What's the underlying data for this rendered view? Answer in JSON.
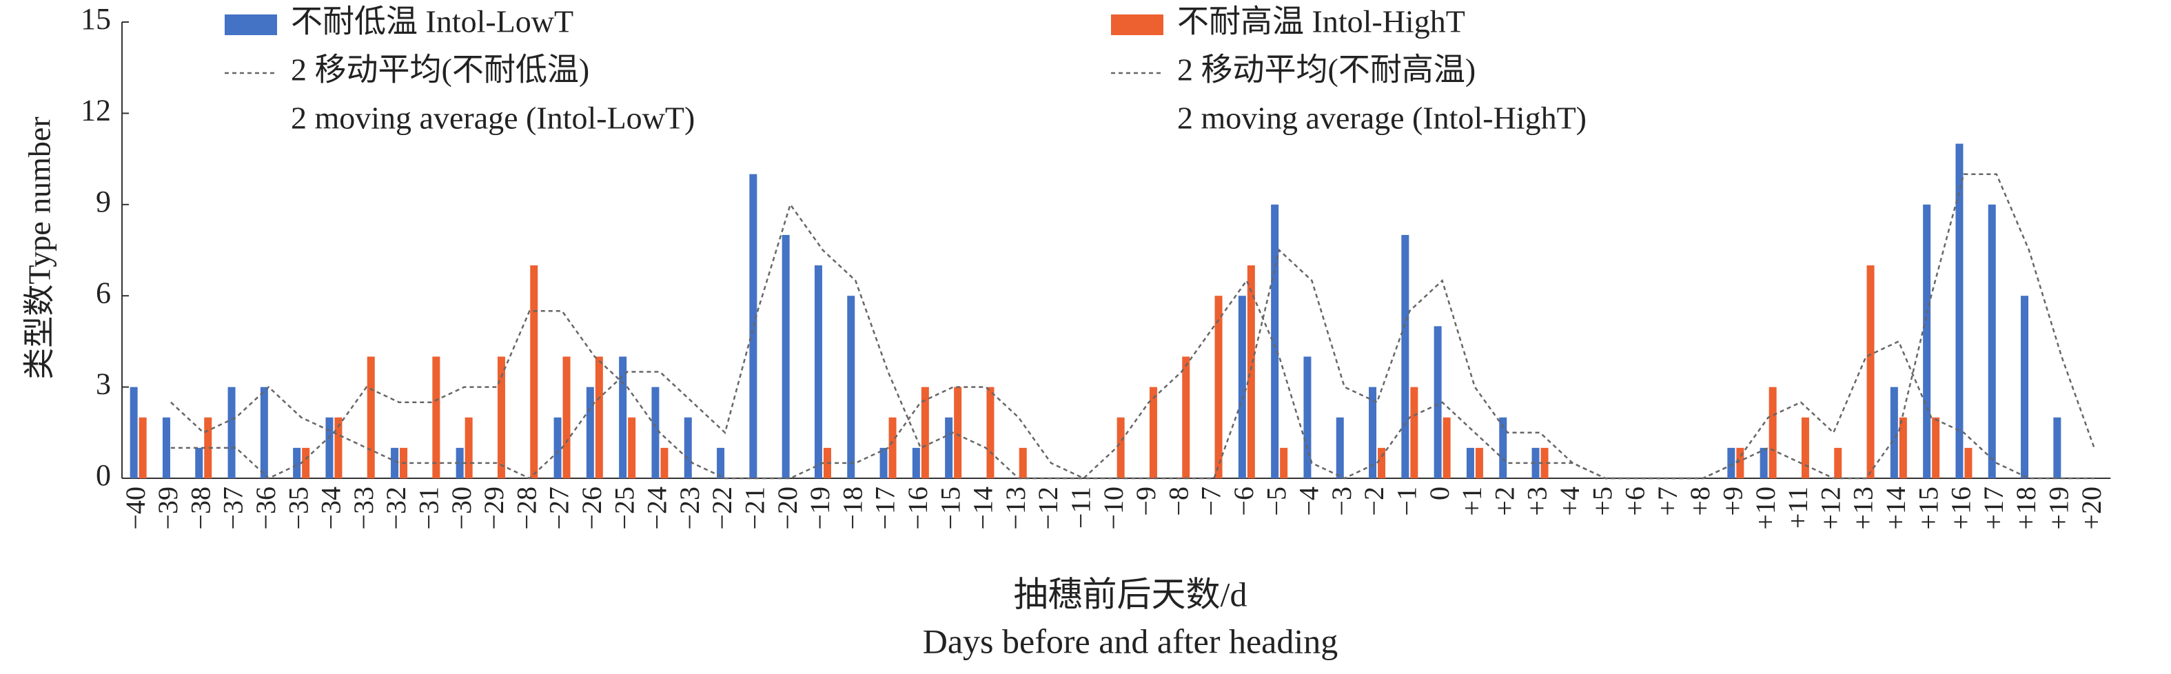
{
  "chart_data": {
    "type": "bar",
    "ylabel": "类型数Type number",
    "xlabel": [
      "抽穗前后天数/d",
      "Days before and after heading"
    ],
    "categories": [
      "−40",
      "−39",
      "−38",
      "−37",
      "−36",
      "−35",
      "−34",
      "−33",
      "−32",
      "−31",
      "−30",
      "−29",
      "−28",
      "−27",
      "−26",
      "−25",
      "−24",
      "−23",
      "−22",
      "−21",
      "−20",
      "−19",
      "−18",
      "−17",
      "−16",
      "−15",
      "−14",
      "−13",
      "−12",
      "−11",
      "−10",
      "−9",
      "−8",
      "−7",
      "−6",
      "−5",
      "−4",
      "−3",
      "−2",
      "−1",
      "0",
      "+1",
      "+2",
      "+3",
      "+4",
      "+5",
      "+6",
      "+7",
      "+8",
      "+9",
      "+10",
      "+11",
      "+12",
      "+13",
      "+14",
      "+15",
      "+16",
      "+17",
      "+18",
      "+19",
      "+20"
    ],
    "series": [
      {
        "name": "不耐低温 Intol-LowT",
        "type": "bar",
        "color": "#4472c4",
        "values": [
          3,
          2,
          1,
          3,
          3,
          1,
          2,
          0,
          1,
          0,
          1,
          0,
          0,
          2,
          3,
          4,
          3,
          2,
          1,
          10,
          8,
          7,
          6,
          1,
          1,
          2,
          0,
          0,
          0,
          0,
          0,
          0,
          0,
          0,
          6,
          9,
          4,
          2,
          3,
          8,
          5,
          1,
          2,
          1,
          0,
          0,
          0,
          0,
          0,
          1,
          1,
          0,
          0,
          0,
          3,
          9,
          11,
          9,
          6,
          2,
          0
        ]
      },
      {
        "name": "不耐高温 Intol-HighT",
        "type": "bar",
        "color": "#ed6030",
        "values": [
          2,
          0,
          2,
          0,
          0,
          1,
          2,
          4,
          1,
          4,
          2,
          4,
          7,
          4,
          4,
          2,
          1,
          0,
          0,
          0,
          0,
          1,
          0,
          2,
          3,
          3,
          3,
          1,
          0,
          0,
          2,
          3,
          4,
          6,
          7,
          1,
          0,
          0,
          1,
          3,
          2,
          1,
          0,
          1,
          0,
          0,
          0,
          0,
          0,
          1,
          3,
          2,
          1,
          7,
          2,
          2,
          1,
          0,
          0,
          0,
          0
        ]
      },
      {
        "name": [
          "2 移动平均(不耐低温)",
          "2 moving average (Intol-LowT)"
        ],
        "type": "line",
        "color": "#666666",
        "values": [
          null,
          2.5,
          1.5,
          2,
          3,
          2,
          1.5,
          1,
          0.5,
          0.5,
          0.5,
          0.5,
          0,
          1,
          2.5,
          3.5,
          3.5,
          2.5,
          1.5,
          5.5,
          9,
          7.5,
          6.5,
          3.5,
          1,
          1.5,
          1,
          0,
          0,
          0,
          0,
          0,
          0,
          0,
          3,
          7.5,
          6.5,
          3,
          2.5,
          5.5,
          6.5,
          3,
          1.5,
          1.5,
          0.5,
          0,
          0,
          0,
          0,
          0.5,
          1,
          0.5,
          0,
          0,
          1.5,
          6,
          10,
          10,
          7.5,
          4,
          1
        ]
      },
      {
        "name": [
          "2 移动平均(不耐高温)",
          "2 moving average (Intol-HighT)"
        ],
        "type": "line",
        "color": "#666666",
        "values": [
          null,
          1,
          1,
          1,
          0,
          0.5,
          1.5,
          3,
          2.5,
          2.5,
          3,
          3,
          5.5,
          5.5,
          4,
          3,
          1.5,
          0.5,
          0,
          0,
          0,
          0.5,
          0.5,
          1,
          2.5,
          3,
          3,
          2,
          0.5,
          0,
          1,
          2.5,
          3.5,
          5,
          6.5,
          4,
          0.5,
          0,
          0.5,
          2,
          2.5,
          1.5,
          0.5,
          0.5,
          0.5,
          0,
          0,
          0,
          0,
          0.5,
          2,
          2.5,
          1.5,
          4,
          4.5,
          2,
          1.5,
          0.5,
          0,
          0,
          0
        ]
      }
    ],
    "ylim": [
      0,
      15
    ],
    "yticks": [
      0,
      3,
      6,
      9,
      12,
      15
    ],
    "grid": false
  }
}
